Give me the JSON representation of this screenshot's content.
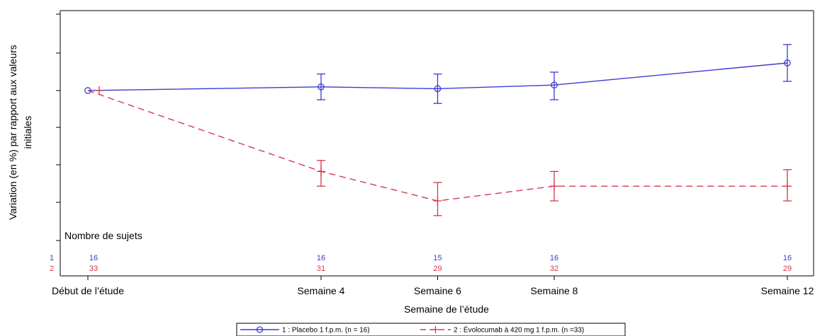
{
  "chart_data": {
    "type": "line",
    "ylabel_lines": [
      "Variation (en %) par rapport aux valeurs",
      "initiales"
    ],
    "xlabel": "Semaine de l’étude",
    "categories": [
      "Début de l’étude",
      "Semaine 4",
      "Semaine 6",
      "Semaine 8",
      "Semaine 12"
    ],
    "week_positions": [
      0,
      4,
      6,
      8,
      12
    ],
    "grid": false,
    "counts_title": "Nombre de sujets",
    "series": [
      {
        "id": "1",
        "name": "1 : Placebo 1 f.p.m. (n = 16)",
        "color": "#3b3bd6",
        "line_style": "solid",
        "marker": "circle",
        "values": [
          0,
          1,
          0.5,
          1.5,
          7.5
        ],
        "err_low": [
          0,
          -2.5,
          -3.5,
          -2.5,
          2.5
        ],
        "err_high": [
          0,
          4.5,
          4.5,
          5,
          12.5
        ],
        "counts": [
          "16",
          "16",
          "15",
          "16",
          "16"
        ]
      },
      {
        "id": "2",
        "name": "2 : Évolocumab à 420 mg 1 f.p.m. (n =33)",
        "color": "#d23a4a",
        "line_style": "dashed",
        "marker": "plus",
        "values": [
          0,
          -22,
          -30,
          -26,
          -26
        ],
        "err_low": [
          0,
          -26,
          -34,
          -30,
          -30
        ],
        "err_high": [
          0,
          -19,
          -25,
          -22,
          -21.5
        ],
        "counts": [
          "33",
          "31",
          "29",
          "32",
          "29"
        ]
      }
    ]
  }
}
